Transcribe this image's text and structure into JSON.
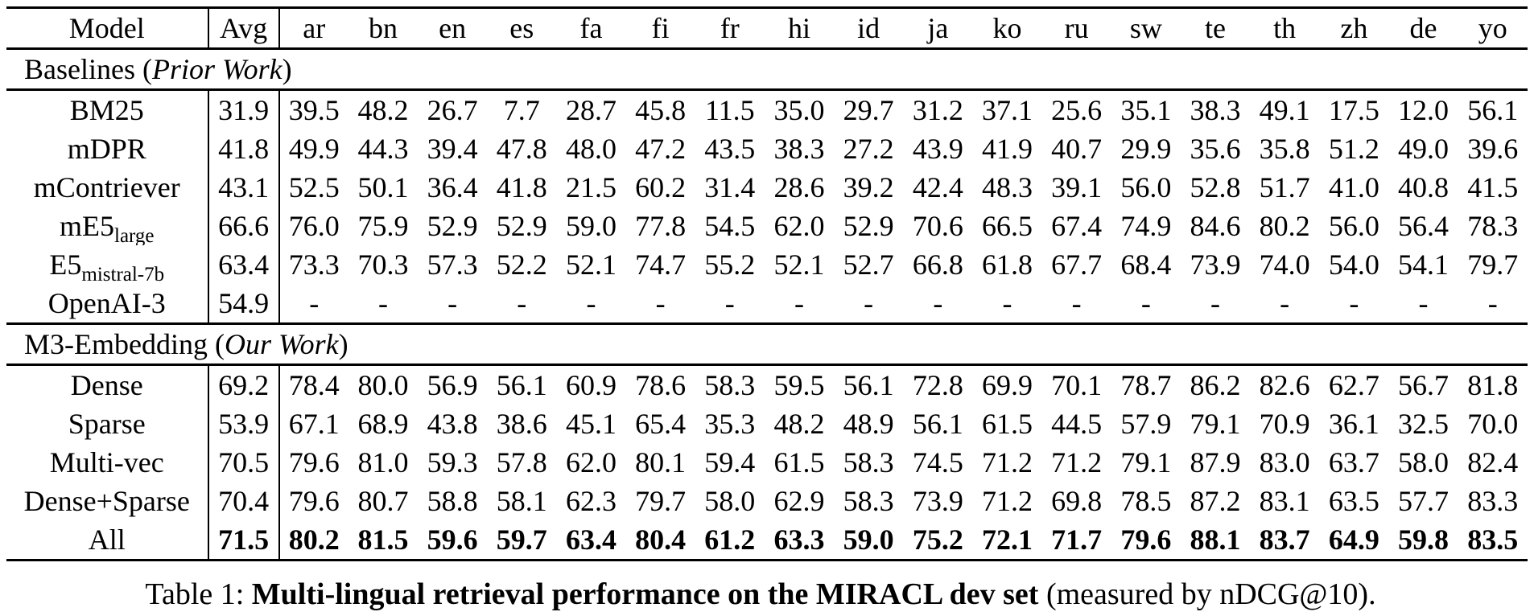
{
  "table": {
    "header": {
      "model": "Model",
      "avg": "Avg",
      "languages": [
        "ar",
        "bn",
        "en",
        "es",
        "fa",
        "fi",
        "fr",
        "hi",
        "id",
        "ja",
        "ko",
        "ru",
        "sw",
        "te",
        "th",
        "zh",
        "de",
        "yo"
      ]
    },
    "sections": [
      {
        "label": {
          "prefix": "Baselines (",
          "italic": "Prior Work",
          "suffix": ")"
        },
        "rows": [
          {
            "model": {
              "main": "BM25",
              "sub": ""
            },
            "avg": "31.9",
            "bold": false,
            "values": [
              "39.5",
              "48.2",
              "26.7",
              "7.7",
              "28.7",
              "45.8",
              "11.5",
              "35.0",
              "29.7",
              "31.2",
              "37.1",
              "25.6",
              "35.1",
              "38.3",
              "49.1",
              "17.5",
              "12.0",
              "56.1"
            ]
          },
          {
            "model": {
              "main": "mDPR",
              "sub": ""
            },
            "avg": "41.8",
            "bold": false,
            "values": [
              "49.9",
              "44.3",
              "39.4",
              "47.8",
              "48.0",
              "47.2",
              "43.5",
              "38.3",
              "27.2",
              "43.9",
              "41.9",
              "40.7",
              "29.9",
              "35.6",
              "35.8",
              "51.2",
              "49.0",
              "39.6"
            ]
          },
          {
            "model": {
              "main": "mContriever",
              "sub": ""
            },
            "avg": "43.1",
            "bold": false,
            "values": [
              "52.5",
              "50.1",
              "36.4",
              "41.8",
              "21.5",
              "60.2",
              "31.4",
              "28.6",
              "39.2",
              "42.4",
              "48.3",
              "39.1",
              "56.0",
              "52.8",
              "51.7",
              "41.0",
              "40.8",
              "41.5"
            ]
          },
          {
            "model": {
              "main": "mE5",
              "sub": "large"
            },
            "avg": "66.6",
            "bold": false,
            "values": [
              "76.0",
              "75.9",
              "52.9",
              "52.9",
              "59.0",
              "77.8",
              "54.5",
              "62.0",
              "52.9",
              "70.6",
              "66.5",
              "67.4",
              "74.9",
              "84.6",
              "80.2",
              "56.0",
              "56.4",
              "78.3"
            ]
          },
          {
            "model": {
              "main": "E5",
              "sub": "mistral-7b"
            },
            "avg": "63.4",
            "bold": false,
            "values": [
              "73.3",
              "70.3",
              "57.3",
              "52.2",
              "52.1",
              "74.7",
              "55.2",
              "52.1",
              "52.7",
              "66.8",
              "61.8",
              "67.7",
              "68.4",
              "73.9",
              "74.0",
              "54.0",
              "54.1",
              "79.7"
            ]
          },
          {
            "model": {
              "main": "OpenAI-3",
              "sub": ""
            },
            "avg": "54.9",
            "bold": false,
            "values": [
              "-",
              "-",
              "-",
              "-",
              "-",
              "-",
              "-",
              "-",
              "-",
              "-",
              "-",
              "-",
              "-",
              "-",
              "-",
              "-",
              "-",
              "-"
            ]
          }
        ]
      },
      {
        "label": {
          "prefix": "M3-Embedding (",
          "italic": "Our Work",
          "suffix": ")"
        },
        "rows": [
          {
            "model": {
              "main": "Dense",
              "sub": ""
            },
            "avg": "69.2",
            "bold": false,
            "values": [
              "78.4",
              "80.0",
              "56.9",
              "56.1",
              "60.9",
              "78.6",
              "58.3",
              "59.5",
              "56.1",
              "72.8",
              "69.9",
              "70.1",
              "78.7",
              "86.2",
              "82.6",
              "62.7",
              "56.7",
              "81.8"
            ]
          },
          {
            "model": {
              "main": "Sparse",
              "sub": ""
            },
            "avg": "53.9",
            "bold": false,
            "values": [
              "67.1",
              "68.9",
              "43.8",
              "38.6",
              "45.1",
              "65.4",
              "35.3",
              "48.2",
              "48.9",
              "56.1",
              "61.5",
              "44.5",
              "57.9",
              "79.1",
              "70.9",
              "36.1",
              "32.5",
              "70.0"
            ]
          },
          {
            "model": {
              "main": "Multi-vec",
              "sub": ""
            },
            "avg": "70.5",
            "bold": false,
            "values": [
              "79.6",
              "81.0",
              "59.3",
              "57.8",
              "62.0",
              "80.1",
              "59.4",
              "61.5",
              "58.3",
              "74.5",
              "71.2",
              "71.2",
              "79.1",
              "87.9",
              "83.0",
              "63.7",
              "58.0",
              "82.4"
            ]
          },
          {
            "model": {
              "main": "Dense+Sparse",
              "sub": ""
            },
            "avg": "70.4",
            "bold": false,
            "values": [
              "79.6",
              "80.7",
              "58.8",
              "58.1",
              "62.3",
              "79.7",
              "58.0",
              "62.9",
              "58.3",
              "73.9",
              "71.2",
              "69.8",
              "78.5",
              "87.2",
              "83.1",
              "63.5",
              "57.7",
              "83.3"
            ]
          },
          {
            "model": {
              "main": "All",
              "sub": ""
            },
            "avg": "71.5",
            "bold": true,
            "values": [
              "80.2",
              "81.5",
              "59.6",
              "59.7",
              "63.4",
              "80.4",
              "61.2",
              "63.3",
              "59.0",
              "75.2",
              "72.1",
              "71.7",
              "79.6",
              "88.1",
              "83.7",
              "64.9",
              "59.8",
              "83.5"
            ]
          }
        ]
      }
    ]
  },
  "caption": {
    "prefix": "Table 1: ",
    "bold": "Multi-lingual retrieval performance on the MIRACL dev set",
    "suffix": " (measured by nDCG@10)."
  }
}
